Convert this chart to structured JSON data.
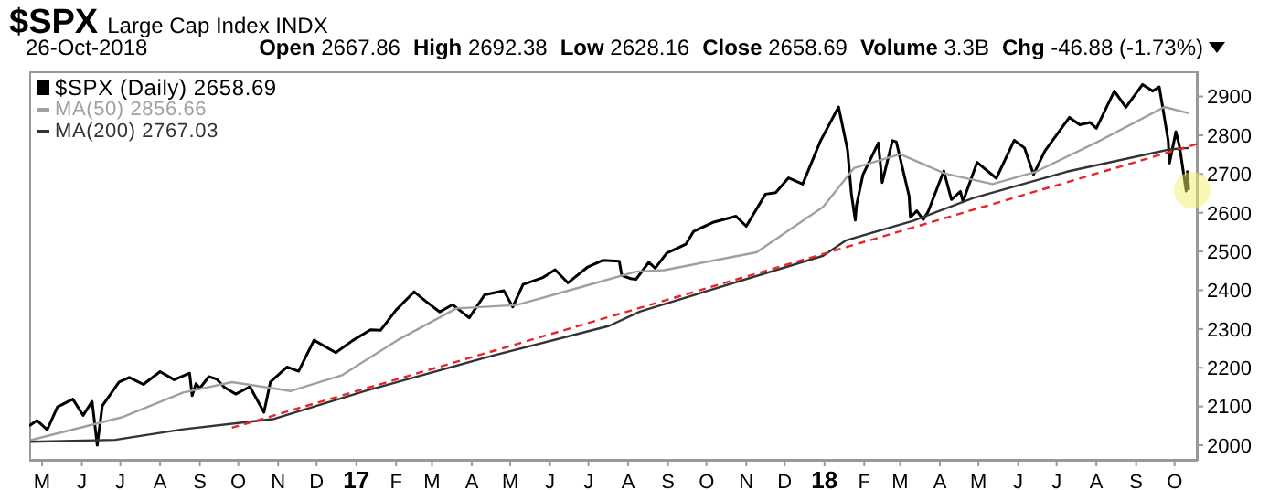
{
  "chart_data": {
    "type": "line",
    "title": "$SPX",
    "subtitle": "Large Cap Index INDX",
    "annotations": [
      "26-Oct-2018",
      "Open 2667.86",
      "High 2692.38",
      "Low 2628.16",
      "Close 2658.69",
      "Volume 3.3B",
      "Chg -46.88 (-1.73%)"
    ],
    "xlim": [
      "2016-05-05",
      "2018-11-02"
    ],
    "xticks": [
      {
        "value": "2016-05-15",
        "label": "M"
      },
      {
        "value": "2016-06-15",
        "label": "J"
      },
      {
        "value": "2016-07-15",
        "label": "J"
      },
      {
        "value": "2016-08-15",
        "label": "A"
      },
      {
        "value": "2016-09-15",
        "label": "S"
      },
      {
        "value": "2016-10-15",
        "label": "O"
      },
      {
        "value": "2016-11-15",
        "label": "N"
      },
      {
        "value": "2016-12-15",
        "label": "D"
      },
      {
        "value": "2017-01-15",
        "label": "17"
      },
      {
        "value": "2017-02-15",
        "label": "F"
      },
      {
        "value": "2017-03-15",
        "label": "M"
      },
      {
        "value": "2017-04-15",
        "label": "A"
      },
      {
        "value": "2017-05-15",
        "label": "M"
      },
      {
        "value": "2017-06-15",
        "label": "J"
      },
      {
        "value": "2017-07-15",
        "label": "J"
      },
      {
        "value": "2017-08-15",
        "label": "A"
      },
      {
        "value": "2017-09-15",
        "label": "S"
      },
      {
        "value": "2017-10-15",
        "label": "O"
      },
      {
        "value": "2017-11-15",
        "label": "N"
      },
      {
        "value": "2017-12-15",
        "label": "D"
      },
      {
        "value": "2018-01-15",
        "label": "18"
      },
      {
        "value": "2018-02-15",
        "label": "F"
      },
      {
        "value": "2018-03-15",
        "label": "M"
      },
      {
        "value": "2018-04-15",
        "label": "A"
      },
      {
        "value": "2018-05-15",
        "label": "M"
      },
      {
        "value": "2018-06-15",
        "label": "J"
      },
      {
        "value": "2018-07-15",
        "label": "J"
      },
      {
        "value": "2018-08-15",
        "label": "A"
      },
      {
        "value": "2018-09-15",
        "label": "S"
      },
      {
        "value": "2018-10-15",
        "label": "O"
      }
    ],
    "ylim": [
      1960,
      2965
    ],
    "yticks": [
      2000,
      2100,
      2200,
      2300,
      2400,
      2500,
      2600,
      2700,
      2800,
      2900
    ],
    "legend": "top left",
    "marker": "none",
    "series": [
      {
        "name": "$SPX (Daily) 2658.69",
        "color": "#000000",
        "line_style": "solid",
        "x": [
          "2016-05-05",
          "2016-05-11",
          "2016-05-19",
          "2016-05-27",
          "2016-06-08",
          "2016-06-16",
          "2016-06-23",
          "2016-06-27",
          "2016-07-01",
          "2016-07-14",
          "2016-07-22",
          "2016-08-02",
          "2016-08-15",
          "2016-08-26",
          "2016-09-07",
          "2016-09-09",
          "2016-09-12",
          "2016-09-15",
          "2016-09-22",
          "2016-09-28",
          "2016-10-04",
          "2016-10-13",
          "2016-10-24",
          "2016-11-04",
          "2016-11-09",
          "2016-11-22",
          "2016-12-01",
          "2016-12-13",
          "2016-12-30",
          "2017-01-12",
          "2017-01-26",
          "2017-02-03",
          "2017-02-15",
          "2017-03-01",
          "2017-03-10",
          "2017-03-21",
          "2017-03-31",
          "2017-04-13",
          "2017-04-25",
          "2017-05-10",
          "2017-05-17",
          "2017-05-25",
          "2017-06-09",
          "2017-06-19",
          "2017-06-29",
          "2017-07-14",
          "2017-07-26",
          "2017-08-08",
          "2017-08-10",
          "2017-08-17",
          "2017-08-21",
          "2017-08-31",
          "2017-09-05",
          "2017-09-14",
          "2017-09-29",
          "2017-10-05",
          "2017-10-20",
          "2017-11-07",
          "2017-11-15",
          "2017-11-30",
          "2017-12-08",
          "2017-12-18",
          "2017-12-29",
          "2018-01-12",
          "2018-01-26",
          "2018-02-02",
          "2018-02-05",
          "2018-02-08",
          "2018-02-09",
          "2018-02-14",
          "2018-02-26",
          "2018-03-01",
          "2018-03-09",
          "2018-03-12",
          "2018-03-22",
          "2018-03-23",
          "2018-03-28",
          "2018-04-02",
          "2018-04-06",
          "2018-04-18",
          "2018-04-24",
          "2018-05-01",
          "2018-05-03",
          "2018-05-14",
          "2018-05-29",
          "2018-06-12",
          "2018-06-20",
          "2018-06-27",
          "2018-07-06",
          "2018-07-25",
          "2018-08-02",
          "2018-08-10",
          "2018-08-15",
          "2018-08-29",
          "2018-09-07",
          "2018-09-20",
          "2018-09-28",
          "2018-10-03",
          "2018-10-05",
          "2018-10-10",
          "2018-10-11",
          "2018-10-16",
          "2018-10-19",
          "2018-10-24",
          "2018-10-25",
          "2018-10-26"
        ],
        "values": [
          2050,
          2064,
          2040,
          2099,
          2119,
          2077,
          2113,
          2000,
          2102,
          2163,
          2175,
          2157,
          2190,
          2169,
          2186,
          2128,
          2159,
          2147,
          2177,
          2171,
          2150,
          2132,
          2151,
          2085,
          2163,
          2202,
          2191,
          2271,
          2239,
          2270,
          2298,
          2297,
          2349,
          2396,
          2372,
          2344,
          2363,
          2329,
          2388,
          2399,
          2357,
          2415,
          2432,
          2453,
          2419,
          2459,
          2477,
          2475,
          2438,
          2430,
          2428,
          2472,
          2457,
          2496,
          2519,
          2552,
          2575,
          2591,
          2565,
          2648,
          2652,
          2690,
          2674,
          2786,
          2873,
          2762,
          2649,
          2581,
          2620,
          2698,
          2780,
          2678,
          2786,
          2783,
          2643,
          2588,
          2605,
          2582,
          2604,
          2708,
          2634,
          2655,
          2629,
          2730,
          2689,
          2787,
          2767,
          2699,
          2760,
          2846,
          2827,
          2833,
          2818,
          2914,
          2872,
          2931,
          2914,
          2925,
          2886,
          2786,
          2728,
          2809,
          2768,
          2656,
          2706,
          2658.69
        ]
      },
      {
        "name": "MA(50) 2856.66",
        "color": "#a0a0a0",
        "line_style": "solid",
        "x": [
          "2016-05-06",
          "2016-07-16",
          "2016-09-02",
          "2016-10-10",
          "2016-11-25",
          "2017-01-04",
          "2017-02-16",
          "2017-04-03",
          "2017-05-20",
          "2017-07-08",
          "2017-08-21",
          "2017-09-12",
          "2017-11-23",
          "2018-01-14",
          "2018-02-07",
          "2018-03-15",
          "2018-04-19",
          "2018-05-26",
          "2018-06-29",
          "2018-08-16",
          "2018-10-07",
          "2018-10-26"
        ],
        "values": [
          2013,
          2072,
          2136,
          2163,
          2140,
          2181,
          2271,
          2353,
          2362,
          2407,
          2448,
          2452,
          2498,
          2615,
          2715,
          2751,
          2701,
          2674,
          2706,
          2783,
          2873,
          2856.66
        ]
      },
      {
        "name": "MA(200) 2767.03",
        "color": "#333333",
        "line_style": "solid",
        "x": [
          "2016-05-06",
          "2016-07-11",
          "2016-09-02",
          "2016-11-12",
          "2017-01-22",
          "2017-05-01",
          "2017-07-31",
          "2017-08-24",
          "2018-01-14",
          "2018-02-01",
          "2018-03-25",
          "2018-05-11",
          "2018-07-23",
          "2018-10-12",
          "2018-10-26"
        ],
        "values": [
          2009,
          2014,
          2041,
          2068,
          2140,
          2231,
          2308,
          2345,
          2489,
          2529,
          2579,
          2638,
          2706,
          2764,
          2767.03
        ]
      },
      {
        "color": "#e8262a",
        "line_style": "dashed",
        "x": [
          "2016-10-10",
          "2018-11-02"
        ],
        "values": [
          2045,
          2778
        ]
      }
    ]
  }
}
